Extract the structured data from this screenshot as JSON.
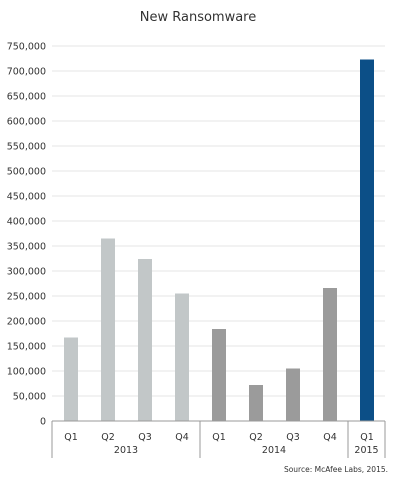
{
  "chart_data": {
    "type": "bar",
    "title": "New Ransomware",
    "xlabel": "",
    "ylabel": "",
    "ylim": [
      0,
      750000
    ],
    "yticks": [
      0,
      50000,
      100000,
      150000,
      200000,
      250000,
      300000,
      350000,
      400000,
      450000,
      500000,
      550000,
      600000,
      650000,
      700000,
      750000
    ],
    "ytick_labels": [
      "0",
      "50,000",
      "100,000",
      "150,000",
      "200,000",
      "250,000",
      "300,000",
      "350,000",
      "400,000",
      "450,000",
      "500,000",
      "550,000",
      "600,000",
      "650,000",
      "700,000",
      "750,000"
    ],
    "groups": [
      {
        "label": "2013",
        "color": "#c2c7c8",
        "categories": [
          "Q1",
          "Q2",
          "Q3",
          "Q4"
        ],
        "values": [
          167000,
          365000,
          324000,
          255000
        ]
      },
      {
        "label": "2014",
        "color": "#9b9b9b",
        "categories": [
          "Q1",
          "Q2",
          "Q3",
          "Q4"
        ],
        "values": [
          184000,
          72000,
          105000,
          266000
        ]
      },
      {
        "label": "2015",
        "color": "#0c4f87",
        "categories": [
          "Q1"
        ],
        "values": [
          723000
        ]
      }
    ],
    "grid": true,
    "legend": "none",
    "source": "Source: McAfee Labs, 2015."
  }
}
